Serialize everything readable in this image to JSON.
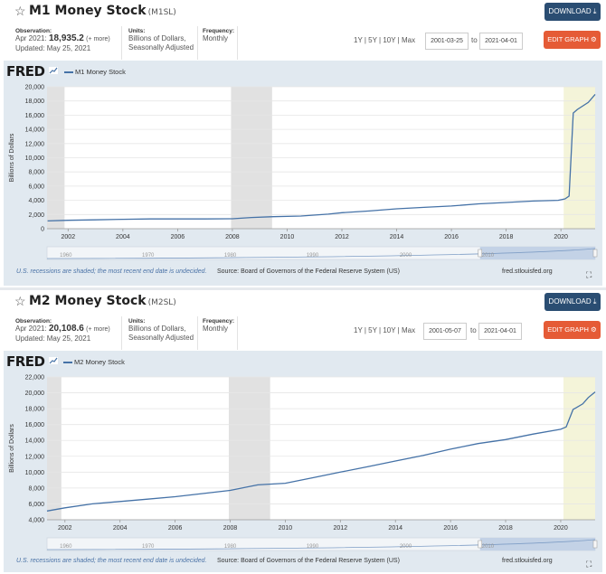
{
  "charts": [
    {
      "title": "M1 Money Stock",
      "series_id": "(M1SL)",
      "download_label": "DOWNLOAD",
      "edit_label": "EDIT GRAPH",
      "observation_label": "Observation:",
      "observation_period": "Apr 2021:",
      "observation_value": "18,935.2",
      "observation_more": "(+ more)",
      "updated": "Updated: May 25, 2021",
      "units_label": "Units:",
      "units_line1": "Billions of Dollars,",
      "units_line2": "Seasonally Adjusted",
      "frequency_label": "Frequency:",
      "frequency_value": "Monthly",
      "range_1y": "1Y",
      "range_5y": "5Y",
      "range_10y": "10Y",
      "range_max": "Max",
      "date_from": "2001-03-25",
      "to_label": "to",
      "date_to": "2021-04-01",
      "logo_text": "FRED",
      "legend": "M1 Money Stock",
      "footer_recession": "U.S. recessions are shaded; the most recent end date is undecided.",
      "footer_source": "Source: Board of Governors of the Federal Reserve System (US)",
      "footer_site": "fred.stlouisfed.org",
      "expand_icon": "expand-icon"
    },
    {
      "title": "M2 Money Stock",
      "series_id": "(M2SL)",
      "download_label": "DOWNLOAD",
      "edit_label": "EDIT GRAPH",
      "observation_label": "Observation:",
      "observation_period": "Apr 2021:",
      "observation_value": "20,108.6",
      "observation_more": "(+ more)",
      "updated": "Updated: May 25, 2021",
      "units_label": "Units:",
      "units_line1": "Billions of Dollars,",
      "units_line2": "Seasonally Adjusted",
      "frequency_label": "Frequency:",
      "frequency_value": "Monthly",
      "range_1y": "1Y",
      "range_5y": "5Y",
      "range_10y": "10Y",
      "range_max": "Max",
      "date_from": "2001-05-07",
      "to_label": "to",
      "date_to": "2021-04-01",
      "logo_text": "FRED",
      "legend": "M2 Money Stock",
      "footer_recession": "U.S. recessions are shaded; the most recent end date is undecided.",
      "footer_source": "Source: Board of Governors of the Federal Reserve System (US)",
      "footer_site": "fred.stlouisfed.org",
      "expand_icon": "expand-icon"
    }
  ],
  "colors": {
    "line": "#4572a7",
    "recession": "#e1e1e1",
    "recent_period": "#f4f4d9",
    "download_btn": "#2a4d72",
    "edit_btn": "#e55b36",
    "frame_bg": "#e1e9f0"
  },
  "chart_data": [
    {
      "type": "line",
      "title": "",
      "xlabel": "",
      "ylabel": "Billions of Dollars",
      "xlim": [
        2001.23,
        2021.25
      ],
      "ylim": [
        0,
        20000
      ],
      "yticks": [
        0,
        2000,
        4000,
        6000,
        8000,
        10000,
        12000,
        14000,
        16000,
        18000,
        20000
      ],
      "ytick_labels": [
        "0",
        "2,000",
        "4,000",
        "6,000",
        "8,000",
        "10,000",
        "12,000",
        "14,000",
        "16,000",
        "18,000",
        "20,000"
      ],
      "xticks": [
        2002,
        2004,
        2006,
        2008,
        2010,
        2012,
        2014,
        2016,
        2018,
        2020
      ],
      "navigator_labels": [
        "1960",
        "1970",
        "1980",
        "1990",
        "2000",
        "2010"
      ],
      "recessions": [
        [
          2001.23,
          2001.87
        ],
        [
          2007.95,
          2009.45
        ]
      ],
      "shaded_recent": [
        2020.1,
        2021.25
      ],
      "series": [
        {
          "name": "M1 Money Stock",
          "x": [
            2001.25,
            2002.0,
            2003.0,
            2004.0,
            2005.0,
            2006.0,
            2007.0,
            2008.0,
            2008.7,
            2009.5,
            2010.5,
            2011.5,
            2012.0,
            2013.0,
            2014.0,
            2015.0,
            2016.0,
            2017.0,
            2018.0,
            2019.0,
            2019.9,
            2020.15,
            2020.3,
            2020.45,
            2020.6,
            2021.0,
            2021.25
          ],
          "values": [
            1090,
            1190,
            1250,
            1330,
            1370,
            1370,
            1380,
            1400,
            1580,
            1690,
            1780,
            2050,
            2250,
            2500,
            2800,
            3000,
            3200,
            3500,
            3700,
            3900,
            4000,
            4200,
            4600,
            16300,
            16800,
            17800,
            18935
          ]
        }
      ]
    },
    {
      "type": "line",
      "title": "",
      "xlabel": "",
      "ylabel": "Billions of Dollars",
      "xlim": [
        2001.35,
        2021.25
      ],
      "ylim": [
        4000,
        22000
      ],
      "yticks": [
        4000,
        6000,
        8000,
        10000,
        12000,
        14000,
        16000,
        18000,
        20000,
        22000
      ],
      "ytick_labels": [
        "4,000",
        "6,000",
        "8,000",
        "10,000",
        "12,000",
        "14,000",
        "16,000",
        "18,000",
        "20,000",
        "22,000"
      ],
      "xticks": [
        2002,
        2004,
        2006,
        2008,
        2010,
        2012,
        2014,
        2016,
        2018,
        2020
      ],
      "navigator_labels": [
        "1960",
        "1970",
        "1980",
        "1990",
        "2000",
        "2010"
      ],
      "recessions": [
        [
          2001.35,
          2001.87
        ],
        [
          2007.95,
          2009.45
        ]
      ],
      "shaded_recent": [
        2020.1,
        2021.25
      ],
      "series": [
        {
          "name": "M2 Money Stock",
          "x": [
            2001.35,
            2002.0,
            2003.0,
            2004.0,
            2005.0,
            2006.0,
            2007.0,
            2008.0,
            2009.0,
            2010.0,
            2011.0,
            2012.0,
            2013.0,
            2014.0,
            2015.0,
            2016.0,
            2017.0,
            2018.0,
            2019.0,
            2020.0,
            2020.2,
            2020.45,
            2020.8,
            2021.0,
            2021.25
          ],
          "values": [
            5100,
            5500,
            6000,
            6300,
            6600,
            6900,
            7300,
            7700,
            8400,
            8600,
            9300,
            10000,
            10700,
            11400,
            12100,
            12900,
            13600,
            14100,
            14800,
            15400,
            15700,
            17900,
            18600,
            19400,
            20108
          ]
        }
      ]
    }
  ]
}
